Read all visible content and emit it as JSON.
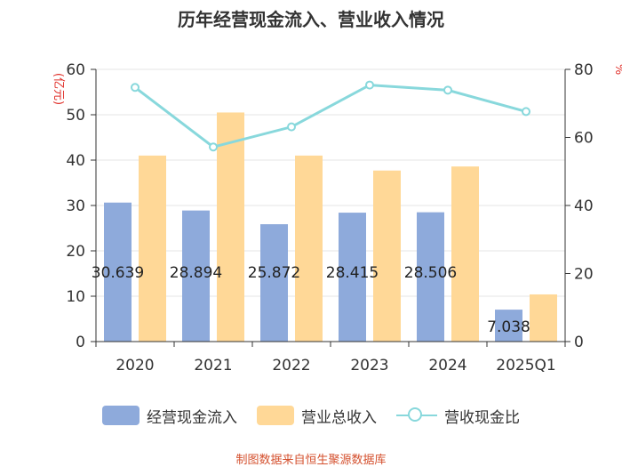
{
  "chart_data": {
    "type": "bar",
    "title": "历年经营现金流入、营业收入情况",
    "categories": [
      "2020",
      "2021",
      "2022",
      "2023",
      "2024",
      "2025Q1"
    ],
    "ylabel": "(亿元)",
    "ylabel_right": "%",
    "ylim": [
      0,
      60
    ],
    "ylim_right": [
      0,
      80
    ],
    "yticks": [
      0,
      10,
      20,
      30,
      40,
      50,
      60
    ],
    "yticks_right": [
      0,
      20,
      40,
      60,
      80
    ],
    "series": [
      {
        "name": "经营现金流入",
        "type": "bar",
        "axis": "left",
        "color": "#8eaadb",
        "values": [
          30.639,
          28.894,
          25.872,
          28.415,
          28.506,
          7.038
        ]
      },
      {
        "name": "营业总收入",
        "type": "bar",
        "axis": "left",
        "color": "#ffd897",
        "values": [
          41.0,
          50.5,
          41.0,
          37.7,
          38.6,
          10.4
        ]
      },
      {
        "name": "营收现金比",
        "type": "line",
        "axis": "right",
        "color": "#88d8dc",
        "values": [
          74.7,
          57.2,
          63.1,
          75.4,
          73.9,
          67.6
        ]
      }
    ],
    "data_labels": [
      "30.639",
      "28.894",
      "25.872",
      "28.415",
      "28.506",
      "7.038"
    ],
    "grid": true,
    "legend_position": "bottom"
  },
  "source_note": "制图数据来自恒生聚源数据库"
}
